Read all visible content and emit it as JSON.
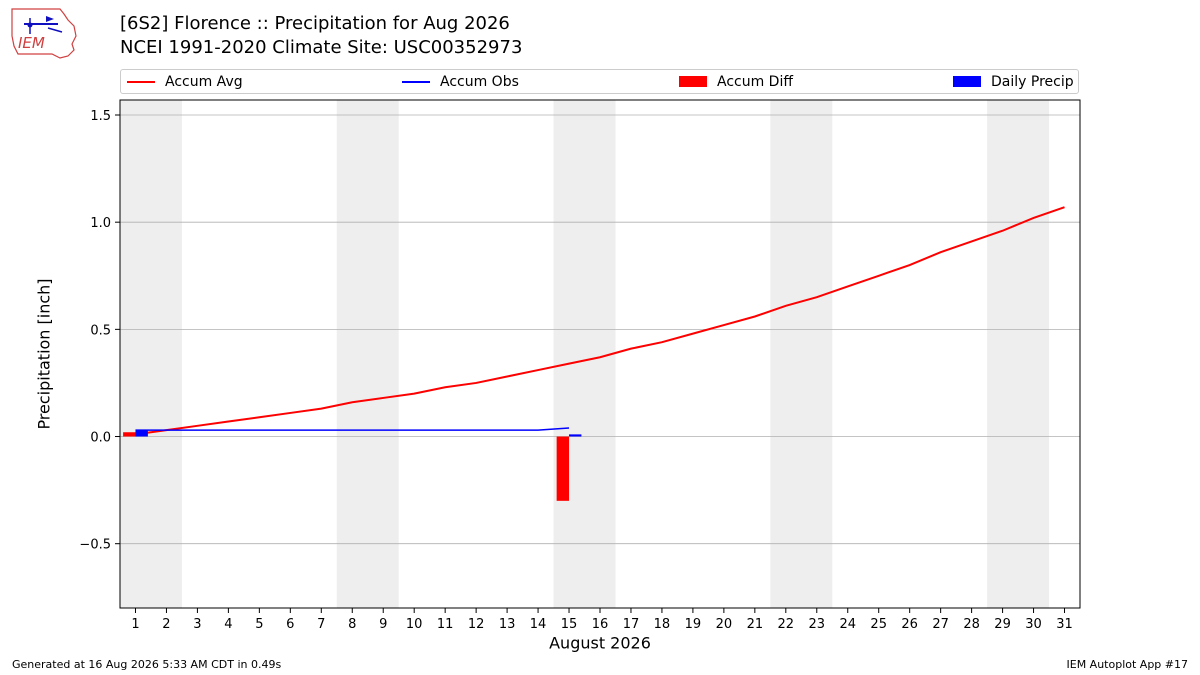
{
  "header": {
    "title_line1": "[6S2] Florence :: Precipitation for Aug 2026",
    "title_line2": "NCEI 1991-2020 Climate Site: USC00352973",
    "logo_text": "IEM"
  },
  "footer": {
    "generated": "Generated at 16 Aug 2026 5:33 AM CDT in 0.49s",
    "app": "IEM Autoplot App #17"
  },
  "colors": {
    "avg": "#ff0000",
    "obs": "#0000ff",
    "diff": "#ff0000",
    "daily": "#0000ff",
    "weekend": "#eeeeee",
    "grid": "#b0b0b0"
  },
  "chart_data": {
    "type": "line",
    "xlabel": "August 2026",
    "ylabel": "Precipitation [inch]",
    "xlim": [
      0.5,
      31.5
    ],
    "ylim": [
      -0.8,
      1.57
    ],
    "yticks": [
      -0.5,
      0.0,
      0.5,
      1.0,
      1.5
    ],
    "ytick_labels": [
      "−0.5",
      "0.0",
      "0.5",
      "1.0",
      "1.5"
    ],
    "x": [
      1,
      2,
      3,
      4,
      5,
      6,
      7,
      8,
      9,
      10,
      11,
      12,
      13,
      14,
      15,
      16,
      17,
      18,
      19,
      20,
      21,
      22,
      23,
      24,
      25,
      26,
      27,
      28,
      29,
      30,
      31
    ],
    "xtick_labels": [
      "1",
      "2",
      "3",
      "4",
      "5",
      "6",
      "7",
      "8",
      "9",
      "10",
      "11",
      "12",
      "13",
      "14",
      "15",
      "16",
      "17",
      "18",
      "19",
      "20",
      "21",
      "22",
      "23",
      "24",
      "25",
      "26",
      "27",
      "28",
      "29",
      "30",
      "31"
    ],
    "weekend_shading": [
      [
        0.5,
        2.5
      ],
      [
        7.5,
        9.5
      ],
      [
        14.5,
        16.5
      ],
      [
        21.5,
        23.5
      ],
      [
        28.5,
        30.5
      ]
    ],
    "grid": "horizontal",
    "legend_position": "top",
    "series": [
      {
        "name": "Accum Avg",
        "kind": "line",
        "x": [
          1,
          2,
          3,
          4,
          5,
          6,
          7,
          8,
          9,
          10,
          11,
          12,
          13,
          14,
          15,
          16,
          17,
          18,
          19,
          20,
          21,
          22,
          23,
          24,
          25,
          26,
          27,
          28,
          29,
          30,
          31
        ],
        "values": [
          0.01,
          0.03,
          0.05,
          0.07,
          0.09,
          0.11,
          0.13,
          0.16,
          0.18,
          0.2,
          0.23,
          0.25,
          0.28,
          0.31,
          0.34,
          0.37,
          0.41,
          0.44,
          0.48,
          0.52,
          0.56,
          0.61,
          0.65,
          0.7,
          0.75,
          0.8,
          0.86,
          0.91,
          0.96,
          1.02,
          1.07
        ]
      },
      {
        "name": "Accum Obs",
        "kind": "line",
        "x": [
          1,
          2,
          3,
          4,
          5,
          6,
          7,
          8,
          9,
          10,
          11,
          12,
          13,
          14,
          15
        ],
        "values": [
          0.03,
          0.03,
          0.03,
          0.03,
          0.03,
          0.03,
          0.03,
          0.03,
          0.03,
          0.03,
          0.03,
          0.03,
          0.03,
          0.03,
          0.04
        ]
      },
      {
        "name": "Accum Diff",
        "kind": "bar",
        "x": [
          1,
          15
        ],
        "values": [
          0.02,
          -0.3
        ]
      },
      {
        "name": "Daily Precip",
        "kind": "bar",
        "x": [
          1,
          15
        ],
        "values": [
          0.03,
          0.01
        ]
      }
    ]
  }
}
